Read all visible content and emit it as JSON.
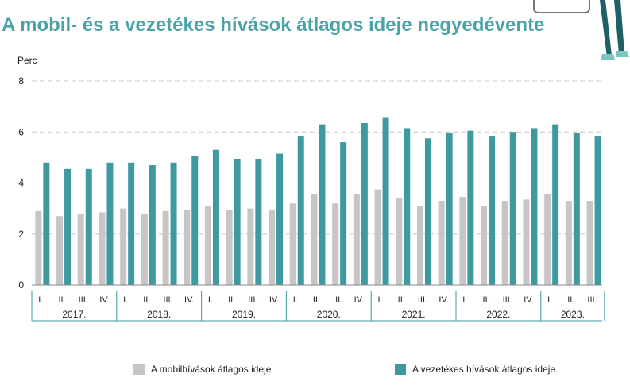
{
  "title": "A mobil- és a vezetékes hívások átlagos ideje negyedévente",
  "colors": {
    "title": "#4ba2a8",
    "mobile": "#c6c6c6",
    "landline": "#3e9aa1",
    "axis_group": "#3e9aa1"
  },
  "chart_data": {
    "type": "bar",
    "ylabel": "Perc",
    "ylim": [
      0,
      8
    ],
    "yticks": [
      0,
      2,
      4,
      6,
      8
    ],
    "grid": true,
    "legend_position": "bottom",
    "groups": [
      {
        "label": "2017.",
        "quarters": [
          "I.",
          "II.",
          "III.",
          "IV."
        ]
      },
      {
        "label": "2018.",
        "quarters": [
          "I.",
          "II.",
          "III.",
          "IV."
        ]
      },
      {
        "label": "2019.",
        "quarters": [
          "I.",
          "II.",
          "III.",
          "IV."
        ]
      },
      {
        "label": "2020.",
        "quarters": [
          "I.",
          "II.",
          "III.",
          "IV."
        ]
      },
      {
        "label": "2021.",
        "quarters": [
          "I.",
          "II.",
          "III.",
          "IV."
        ]
      },
      {
        "label": "2022.",
        "quarters": [
          "I.",
          "II.",
          "III.",
          "IV."
        ]
      },
      {
        "label": "2023.",
        "quarters": [
          "I.",
          "II.",
          "III."
        ]
      }
    ],
    "series": [
      {
        "name": "A mobilhívások átlagos ideje",
        "color": "#c6c6c6",
        "values": [
          2.9,
          2.7,
          2.8,
          2.85,
          3.0,
          2.8,
          2.9,
          2.95,
          3.1,
          2.95,
          3.0,
          2.95,
          3.2,
          3.55,
          3.2,
          3.55,
          3.75,
          3.4,
          3.1,
          3.3,
          3.45,
          3.1,
          3.3,
          3.35,
          3.55,
          3.3,
          3.3
        ]
      },
      {
        "name": "A vezetékes hívások átlagos ideje",
        "color": "#3e9aa1",
        "values": [
          4.8,
          4.55,
          4.55,
          4.8,
          4.8,
          4.7,
          4.8,
          5.05,
          5.3,
          4.95,
          4.95,
          5.15,
          5.85,
          6.3,
          5.6,
          6.35,
          6.55,
          6.15,
          5.75,
          5.95,
          6.05,
          5.85,
          6.0,
          6.15,
          6.3,
          5.95,
          5.85
        ]
      }
    ]
  }
}
